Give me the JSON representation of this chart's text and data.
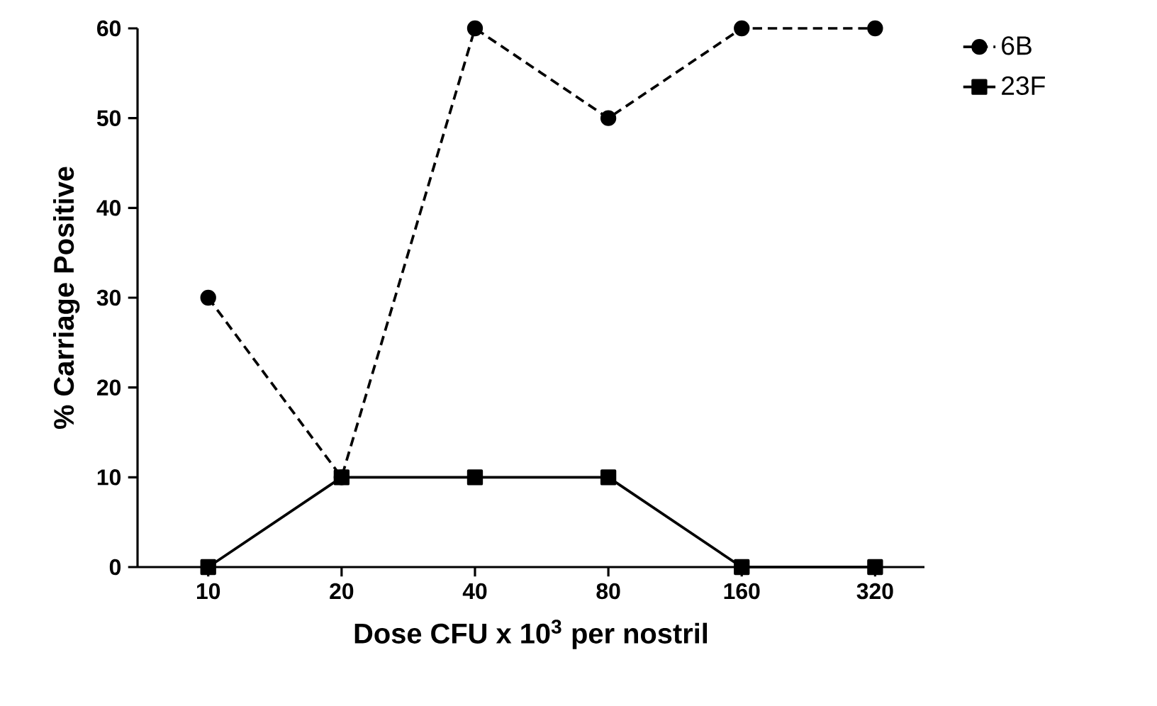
{
  "chart_data": {
    "type": "line",
    "xlabel": "Dose CFU x 10$^{3}$ per nostril",
    "ylabel": "% Carriage Positive",
    "categories": [
      "10",
      "20",
      "40",
      "80",
      "160",
      "320"
    ],
    "series": [
      {
        "name": "6B",
        "color": "#000000",
        "values": [
          30,
          10,
          60,
          50,
          60,
          60
        ],
        "marker": "circle",
        "line_style": "dashed"
      },
      {
        "name": "23F",
        "color": "#000000",
        "values": [
          0,
          10,
          10,
          10,
          0,
          0
        ],
        "marker": "square",
        "line_style": "solid"
      }
    ],
    "ylim": [
      0,
      60
    ],
    "yticks": [
      0,
      10,
      20,
      30,
      40,
      50,
      60
    ],
    "grid": false,
    "legend": "right"
  }
}
